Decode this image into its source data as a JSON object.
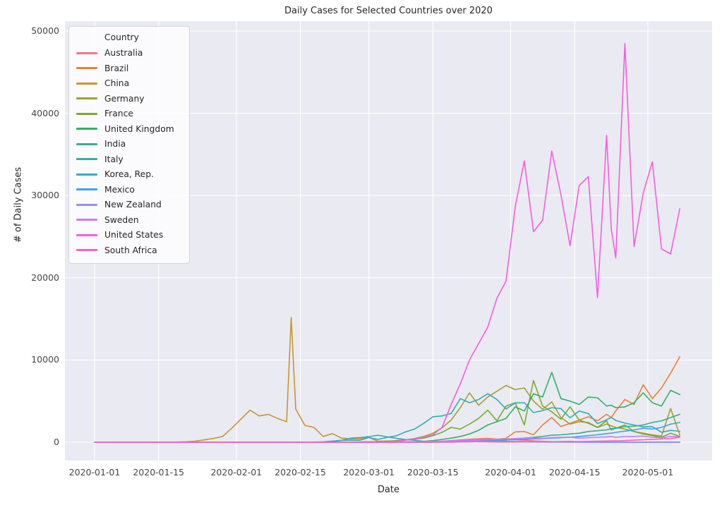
{
  "figure": {
    "background": "#ffffff",
    "plot_background": "#eaeaf2",
    "grid_color": "#ffffff",
    "title_color": "#262626",
    "tick_color": "#454545"
  },
  "chart_data": {
    "type": "line",
    "title": "Daily Cases for Selected Countries over 2020",
    "xlabel": "Date",
    "ylabel": "# of Daily Cases",
    "legend_title": "Country",
    "legend_position": "upper left",
    "grid": true,
    "ylim": [
      0,
      50000
    ],
    "yticks": [
      0,
      10000,
      20000,
      30000,
      40000,
      50000
    ],
    "xticks": [
      "2020-01-01",
      "2020-01-15",
      "2020-02-01",
      "2020-02-15",
      "2020-03-01",
      "2020-03-15",
      "2020-04-01",
      "2020-04-15",
      "2020-05-01"
    ],
    "dates": [
      "2020-01-01",
      "2020-01-03",
      "2020-01-05",
      "2020-01-07",
      "2020-01-09",
      "2020-01-11",
      "2020-01-13",
      "2020-01-15",
      "2020-01-17",
      "2020-01-19",
      "2020-01-21",
      "2020-01-23",
      "2020-01-25",
      "2020-01-27",
      "2020-01-29",
      "2020-01-31",
      "2020-02-02",
      "2020-02-04",
      "2020-02-06",
      "2020-02-08",
      "2020-02-10",
      "2020-02-12",
      "2020-02-13",
      "2020-02-14",
      "2020-02-16",
      "2020-02-18",
      "2020-02-20",
      "2020-02-22",
      "2020-02-24",
      "2020-02-26",
      "2020-02-28",
      "2020-03-01",
      "2020-03-03",
      "2020-03-05",
      "2020-03-07",
      "2020-03-09",
      "2020-03-11",
      "2020-03-13",
      "2020-03-15",
      "2020-03-17",
      "2020-03-19",
      "2020-03-21",
      "2020-03-23",
      "2020-03-25",
      "2020-03-27",
      "2020-03-29",
      "2020-03-31",
      "2020-04-02",
      "2020-04-04",
      "2020-04-06",
      "2020-04-08",
      "2020-04-10",
      "2020-04-12",
      "2020-04-14",
      "2020-04-16",
      "2020-04-18",
      "2020-04-20",
      "2020-04-22",
      "2020-04-23",
      "2020-04-24",
      "2020-04-26",
      "2020-04-28",
      "2020-04-30",
      "2020-05-02",
      "2020-05-04",
      "2020-05-06",
      "2020-05-08"
    ],
    "series": [
      {
        "name": "Australia",
        "color": "#f77189",
        "values": [
          0,
          0,
          0,
          0,
          0,
          0,
          0,
          0,
          0,
          0,
          0,
          0,
          0,
          1,
          2,
          3,
          3,
          4,
          4,
          5,
          5,
          6,
          6,
          6,
          6,
          7,
          7,
          8,
          8,
          9,
          10,
          12,
          15,
          20,
          25,
          30,
          40,
          60,
          90,
          130,
          200,
          280,
          360,
          420,
          460,
          380,
          320,
          300,
          250,
          170,
          110,
          70,
          55,
          45,
          35,
          28,
          22,
          18,
          16,
          15,
          12,
          14,
          18,
          15,
          18,
          12,
          10
        ]
      },
      {
        "name": "Brazil",
        "color": "#e68332",
        "values": [
          0,
          0,
          0,
          0,
          0,
          0,
          0,
          0,
          0,
          0,
          0,
          0,
          0,
          0,
          0,
          0,
          0,
          0,
          0,
          0,
          0,
          0,
          0,
          0,
          0,
          0,
          0,
          0,
          0,
          0,
          1,
          1,
          1,
          2,
          4,
          8,
          15,
          25,
          45,
          80,
          120,
          170,
          230,
          310,
          400,
          350,
          480,
          1250,
          1300,
          900,
          2100,
          3000,
          1900,
          2300,
          2700,
          3100,
          2600,
          3400,
          3000,
          3800,
          5200,
          4600,
          7000,
          5300,
          6600,
          8400,
          10400
        ]
      },
      {
        "name": "China",
        "color": "#c89531",
        "values": [
          0,
          0,
          0,
          0,
          0,
          0,
          0,
          0,
          5,
          17,
          60,
          130,
          280,
          460,
          700,
          1700,
          2800,
          3900,
          3200,
          3400,
          2900,
          2500,
          15152,
          4050,
          2050,
          1800,
          700,
          1050,
          500,
          410,
          430,
          580,
          130,
          140,
          100,
          45,
          30,
          25,
          20,
          30,
          40,
          80,
          100,
          60,
          50,
          35,
          30,
          35,
          50,
          40,
          60,
          50,
          90,
          100,
          50,
          30,
          30,
          20,
          25,
          30,
          20,
          15,
          10,
          5,
          3,
          2,
          2
        ]
      },
      {
        "name": "Germany",
        "color": "#a4a031",
        "values": [
          0,
          0,
          0,
          0,
          0,
          0,
          0,
          0,
          0,
          0,
          0,
          0,
          0,
          0,
          0,
          0,
          0,
          0,
          0,
          0,
          0,
          0,
          0,
          0,
          0,
          0,
          0,
          5,
          10,
          15,
          30,
          60,
          70,
          130,
          200,
          300,
          450,
          700,
          1100,
          1750,
          2700,
          4200,
          6000,
          4500,
          5500,
          6200,
          6900,
          6400,
          6600,
          5000,
          4000,
          4900,
          3000,
          2200,
          2500,
          2400,
          1800,
          2200,
          2000,
          1800,
          1600,
          1300,
          1100,
          900,
          750,
          4100,
          900
        ]
      },
      {
        "name": "France",
        "color": "#77ab31",
        "values": [
          0,
          0,
          0,
          0,
          0,
          0,
          0,
          0,
          0,
          0,
          0,
          0,
          2,
          1,
          2,
          3,
          3,
          2,
          2,
          1,
          1,
          1,
          1,
          2,
          2,
          3,
          4,
          5,
          10,
          20,
          40,
          45,
          70,
          110,
          190,
          280,
          380,
          500,
          800,
          1200,
          1800,
          1600,
          2200,
          2900,
          3900,
          2600,
          4400,
          4800,
          2100,
          7500,
          4400,
          3700,
          2800,
          4300,
          2700,
          2300,
          1800,
          2600,
          1500,
          1700,
          2100,
          1300,
          1000,
          800,
          600,
          1100,
          700
        ]
      },
      {
        "name": "United Kingdom",
        "color": "#31b165",
        "values": [
          0,
          0,
          0,
          0,
          0,
          0,
          0,
          0,
          0,
          0,
          0,
          0,
          0,
          0,
          0,
          0,
          0,
          0,
          0,
          0,
          0,
          0,
          0,
          0,
          0,
          0,
          0,
          0,
          0,
          1,
          2,
          5,
          10,
          15,
          25,
          35,
          55,
          100,
          200,
          340,
          500,
          700,
          1000,
          1450,
          2100,
          2500,
          2900,
          4300,
          3800,
          5900,
          5500,
          8500,
          5300,
          5000,
          4600,
          5500,
          5400,
          4400,
          4500,
          4200,
          4300,
          4800,
          6000,
          4800,
          4400,
          6300,
          5800
        ]
      },
      {
        "name": "India",
        "color": "#34af8d",
        "values": [
          0,
          0,
          0,
          0,
          0,
          0,
          0,
          0,
          0,
          0,
          0,
          0,
          0,
          0,
          0,
          0,
          0,
          0,
          0,
          0,
          0,
          0,
          0,
          0,
          0,
          0,
          0,
          0,
          0,
          0,
          0,
          1,
          1,
          2,
          3,
          5,
          8,
          10,
          15,
          25,
          50,
          80,
          100,
          130,
          150,
          200,
          250,
          400,
          500,
          600,
          700,
          850,
          900,
          1000,
          1100,
          1300,
          1400,
          1500,
          1650,
          1700,
          1900,
          1950,
          2100,
          2400,
          2600,
          3000,
          3400
        ]
      },
      {
        "name": "Italy",
        "color": "#36adab",
        "values": [
          0,
          0,
          0,
          0,
          0,
          0,
          0,
          0,
          0,
          0,
          0,
          0,
          0,
          0,
          0,
          0,
          0,
          0,
          0,
          0,
          0,
          0,
          0,
          0,
          0,
          0,
          3,
          60,
          230,
          250,
          240,
          570,
          340,
          590,
          780,
          1250,
          1600,
          2300,
          3100,
          3200,
          3500,
          5300,
          4800,
          5200,
          5900,
          5200,
          4050,
          4780,
          4800,
          3600,
          3840,
          4200,
          4090,
          2970,
          3790,
          3490,
          2260,
          2730,
          3020,
          2650,
          2320,
          2090,
          1870,
          1900,
          1220,
          1440,
          1330
        ]
      },
      {
        "name": "Korea, Rep.",
        "color": "#38a9c9",
        "values": [
          0,
          0,
          0,
          0,
          0,
          0,
          0,
          0,
          0,
          1,
          1,
          1,
          2,
          1,
          1,
          1,
          1,
          1,
          1,
          1,
          1,
          2,
          2,
          2,
          3,
          15,
          50,
          140,
          230,
          500,
          570,
          690,
          850,
          650,
          480,
          330,
          240,
          110,
          75,
          85,
          95,
          100,
          105,
          90,
          80,
          75,
          100,
          90,
          80,
          50,
          40,
          30,
          30,
          25,
          20,
          15,
          10,
          10,
          10,
          10,
          10,
          12,
          8,
          10,
          8,
          10,
          12
        ]
      },
      {
        "name": "Mexico",
        "color": "#3ba3ec",
        "values": [
          0,
          0,
          0,
          0,
          0,
          0,
          0,
          0,
          0,
          0,
          0,
          0,
          0,
          0,
          0,
          0,
          0,
          0,
          0,
          0,
          0,
          0,
          0,
          0,
          0,
          0,
          0,
          0,
          0,
          0,
          0,
          0,
          0,
          1,
          1,
          2,
          4,
          8,
          15,
          25,
          40,
          65,
          100,
          130,
          190,
          230,
          290,
          320,
          350,
          400,
          450,
          500,
          550,
          600,
          700,
          800,
          900,
          1050,
          1100,
          1200,
          1350,
          1500,
          1700,
          1600,
          1800,
          2200,
          2400
        ]
      },
      {
        "name": "New Zealand",
        "color": "#9491f4",
        "values": [
          0,
          0,
          0,
          0,
          0,
          0,
          0,
          0,
          0,
          0,
          0,
          0,
          0,
          0,
          0,
          0,
          0,
          0,
          0,
          0,
          0,
          0,
          0,
          0,
          0,
          0,
          0,
          0,
          0,
          0,
          0,
          0,
          0,
          0,
          0,
          0,
          0,
          1,
          2,
          5,
          10,
          35,
          50,
          75,
          85,
          80,
          75,
          90,
          70,
          50,
          30,
          20,
          15,
          10,
          8,
          5,
          5,
          3,
          3,
          2,
          2,
          2,
          3,
          2,
          2,
          1,
          2
        ]
      },
      {
        "name": "Sweden",
        "color": "#cc7af4",
        "values": [
          0,
          0,
          0,
          0,
          0,
          0,
          0,
          0,
          0,
          0,
          0,
          0,
          0,
          0,
          0,
          0,
          0,
          0,
          0,
          0,
          0,
          0,
          0,
          0,
          0,
          0,
          0,
          0,
          0,
          1,
          2,
          5,
          8,
          12,
          15,
          20,
          30,
          50,
          100,
          130,
          160,
          200,
          240,
          250,
          300,
          350,
          400,
          450,
          500,
          520,
          480,
          550,
          600,
          620,
          500,
          550,
          600,
          650,
          700,
          600,
          680,
          700,
          750,
          600,
          550,
          700,
          650
        ]
      },
      {
        "name": "United States",
        "color": "#f45ee0",
        "values": [
          0,
          0,
          0,
          0,
          0,
          0,
          0,
          0,
          0,
          0,
          1,
          1,
          1,
          1,
          1,
          1,
          1,
          1,
          1,
          1,
          1,
          1,
          1,
          1,
          1,
          1,
          1,
          1,
          1,
          1,
          5,
          10,
          20,
          50,
          120,
          250,
          400,
          600,
          900,
          1800,
          4600,
          7100,
          10000,
          12000,
          14000,
          17500,
          19600,
          28600,
          34200,
          25600,
          27000,
          35400,
          30100,
          23900,
          31200,
          32300,
          17600,
          37300,
          26000,
          22400,
          48500,
          23800,
          30300,
          34100,
          23500,
          22900,
          28400
        ]
      },
      {
        "name": "South Africa",
        "color": "#f863b8",
        "values": [
          0,
          0,
          0,
          0,
          0,
          0,
          0,
          0,
          0,
          0,
          0,
          0,
          0,
          0,
          0,
          0,
          0,
          0,
          0,
          0,
          0,
          0,
          0,
          0,
          0,
          0,
          0,
          0,
          0,
          0,
          0,
          0,
          0,
          1,
          1,
          2,
          3,
          5,
          10,
          25,
          45,
          70,
          80,
          90,
          70,
          60,
          55,
          60,
          50,
          60,
          70,
          60,
          70,
          80,
          90,
          100,
          120,
          150,
          160,
          170,
          200,
          250,
          300,
          350,
          400,
          450,
          600
        ]
      }
    ]
  }
}
